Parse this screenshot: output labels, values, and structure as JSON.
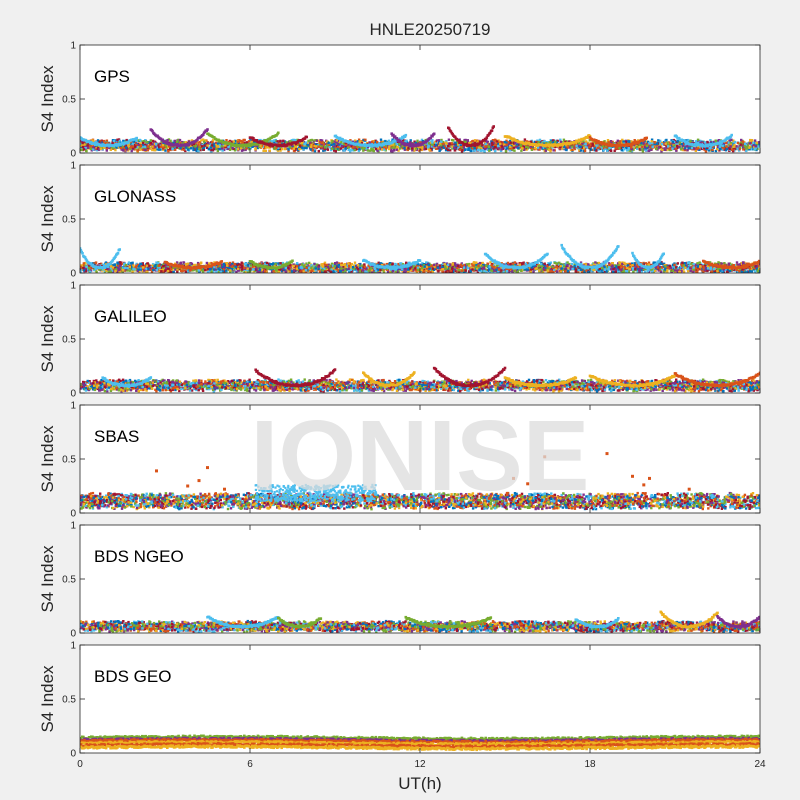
{
  "figure": {
    "title": "HNLE20250719",
    "xlabel": "UT(h)",
    "watermark": "IONISE",
    "background_color": "#f0f0f0"
  },
  "chart_data": {
    "type": "scatter",
    "title": "HNLE20250719",
    "xlabel": "UT(h)",
    "ylabel": "S4 Index",
    "xlim": [
      0,
      24
    ],
    "ylim": [
      0,
      1
    ],
    "xticks": [
      "0",
      "6",
      "12",
      "18",
      "24"
    ],
    "yticks": [
      "0",
      "0.5",
      "1"
    ],
    "grid": false,
    "legend": "none",
    "series_colors": [
      "#0072BD",
      "#D95319",
      "#EDB120",
      "#7E2F8E",
      "#77AC30",
      "#4DBEEE",
      "#A2142F"
    ],
    "panels": [
      {
        "label": "GPS",
        "baseline": 0.07,
        "spread": 0.04,
        "arcs": [
          {
            "x": [
              0,
              2
            ],
            "peak": 0.14,
            "color": "#4DBEEE"
          },
          {
            "x": [
              2.5,
              4.5
            ],
            "peak": 0.22,
            "color": "#7E2F8E"
          },
          {
            "x": [
              4.5,
              7
            ],
            "peak": 0.18,
            "color": "#77AC30"
          },
          {
            "x": [
              6,
              8
            ],
            "peak": 0.15,
            "color": "#A2142F"
          },
          {
            "x": [
              9,
              11.5
            ],
            "peak": 0.16,
            "color": "#4DBEEE"
          },
          {
            "x": [
              11,
              12.5
            ],
            "peak": 0.18,
            "color": "#7E2F8E"
          },
          {
            "x": [
              13,
              14.6
            ],
            "peak": 0.24,
            "color": "#A2142F"
          },
          {
            "x": [
              15,
              18
            ],
            "peak": 0.16,
            "color": "#EDB120"
          },
          {
            "x": [
              18,
              20
            ],
            "peak": 0.14,
            "color": "#D95319"
          },
          {
            "x": [
              21,
              23
            ],
            "peak": 0.16,
            "color": "#4DBEEE"
          }
        ]
      },
      {
        "label": "GLONASS",
        "baseline": 0.05,
        "spread": 0.035,
        "arcs": [
          {
            "x": [
              0,
              1.4
            ],
            "peak": 0.22,
            "color": "#4DBEEE"
          },
          {
            "x": [
              3,
              5
            ],
            "peak": 0.1,
            "color": "#D95319"
          },
          {
            "x": [
              6,
              7.5
            ],
            "peak": 0.11,
            "color": "#77AC30"
          },
          {
            "x": [
              10,
              12
            ],
            "peak": 0.12,
            "color": "#4DBEEE"
          },
          {
            "x": [
              14.3,
              16.5
            ],
            "peak": 0.18,
            "color": "#4DBEEE"
          },
          {
            "x": [
              17,
              19
            ],
            "peak": 0.25,
            "color": "#4DBEEE"
          },
          {
            "x": [
              19.5,
              20.6
            ],
            "peak": 0.18,
            "color": "#4DBEEE"
          },
          {
            "x": [
              22,
              24
            ],
            "peak": 0.11,
            "color": "#D95319"
          }
        ]
      },
      {
        "label": "GALILEO",
        "baseline": 0.07,
        "spread": 0.04,
        "arcs": [
          {
            "x": [
              0.8,
              2.5
            ],
            "peak": 0.14,
            "color": "#4DBEEE"
          },
          {
            "x": [
              6.2,
              9
            ],
            "peak": 0.21,
            "color": "#A2142F"
          },
          {
            "x": [
              10,
              11.8
            ],
            "peak": 0.19,
            "color": "#EDB120"
          },
          {
            "x": [
              12.5,
              15
            ],
            "peak": 0.23,
            "color": "#A2142F"
          },
          {
            "x": [
              15,
              17.5
            ],
            "peak": 0.14,
            "color": "#EDB120"
          },
          {
            "x": [
              18,
              21
            ],
            "peak": 0.16,
            "color": "#EDB120"
          },
          {
            "x": [
              21,
              24
            ],
            "peak": 0.18,
            "color": "#D95319"
          }
        ]
      },
      {
        "label": "SBAS",
        "baseline": 0.11,
        "spread": 0.06,
        "arcs": [],
        "outliers": [
          {
            "x": 2.7,
            "y": 0.39
          },
          {
            "x": 4.5,
            "y": 0.42
          },
          {
            "x": 4.2,
            "y": 0.3
          },
          {
            "x": 3.8,
            "y": 0.25
          },
          {
            "x": 5.1,
            "y": 0.22
          },
          {
            "x": 15.3,
            "y": 0.32
          },
          {
            "x": 15.8,
            "y": 0.27
          },
          {
            "x": 16.4,
            "y": 0.52
          },
          {
            "x": 18.6,
            "y": 0.55
          },
          {
            "x": 19.5,
            "y": 0.34
          },
          {
            "x": 20.1,
            "y": 0.32
          },
          {
            "x": 19.9,
            "y": 0.26
          },
          {
            "x": 21.5,
            "y": 0.22
          }
        ],
        "clusters": [
          {
            "x": [
              6.2,
              10.5
            ],
            "top": 0.26,
            "color": "#4DBEEE"
          }
        ]
      },
      {
        "label": "BDS NGEO",
        "baseline": 0.06,
        "spread": 0.035,
        "arcs": [
          {
            "x": [
              4.5,
              7
            ],
            "peak": 0.15,
            "color": "#4DBEEE"
          },
          {
            "x": [
              7,
              8.5
            ],
            "peak": 0.14,
            "color": "#77AC30"
          },
          {
            "x": [
              11.5,
              14.5
            ],
            "peak": 0.14,
            "color": "#77AC30"
          },
          {
            "x": [
              17.5,
              19
            ],
            "peak": 0.13,
            "color": "#4DBEEE"
          },
          {
            "x": [
              20.5,
              22.5
            ],
            "peak": 0.19,
            "color": "#EDB120"
          },
          {
            "x": [
              22.5,
              24
            ],
            "peak": 0.15,
            "color": "#7E2F8E"
          }
        ]
      },
      {
        "label": "BDS GEO",
        "flat": true,
        "bands": [
          {
            "level": 0.14,
            "color": "#77AC30"
          },
          {
            "level": 0.12,
            "color": "#7E2F8E"
          },
          {
            "level": 0.11,
            "color": "#D95319"
          },
          {
            "level": 0.09,
            "color": "#EDB120"
          },
          {
            "level": 0.07,
            "color": "#D95319"
          },
          {
            "level": 0.05,
            "color": "#EDB120"
          }
        ]
      }
    ]
  }
}
